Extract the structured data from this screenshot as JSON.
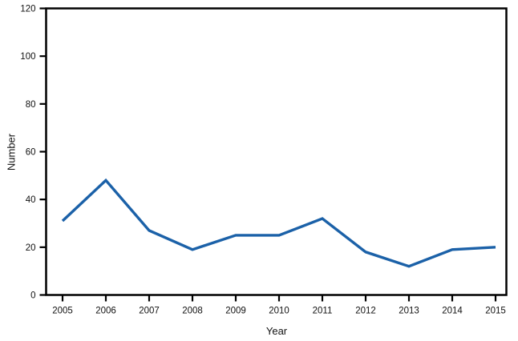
{
  "chart_data": {
    "type": "line",
    "x": [
      2005,
      2006,
      2007,
      2008,
      2009,
      2010,
      2011,
      2012,
      2013,
      2014,
      2015
    ],
    "series": [
      {
        "name": "Number",
        "values": [
          31,
          48,
          27,
          19,
          25,
          25,
          32,
          18,
          12,
          19,
          20
        ],
        "color": "#1b61a8"
      }
    ],
    "xlabel": "Year",
    "ylabel": "Number",
    "ylim": [
      0,
      120
    ],
    "yticks": [
      0,
      20,
      40,
      60,
      80,
      100,
      120
    ],
    "grid": false,
    "legend": "none",
    "frame": "box",
    "axis_color": "#000000",
    "background": "#ffffff"
  }
}
